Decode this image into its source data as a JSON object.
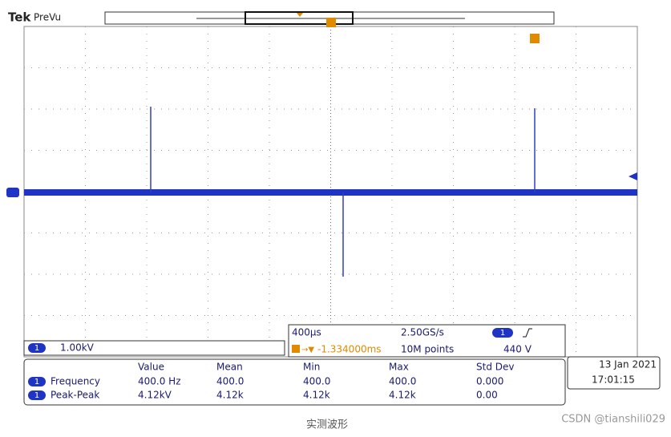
{
  "header": {
    "brand": "Tek",
    "mode": "PreVu"
  },
  "channel": {
    "number": "1",
    "scale": "1.00kV"
  },
  "acquisition": {
    "timebase": "400µs",
    "sample_rate": "2.50GS/s",
    "trigger_position": "-1.334000ms",
    "record_length": "10M points",
    "trigger_channel": "1",
    "trigger_level": "440 V"
  },
  "measurements": {
    "columns": [
      "Value",
      "Mean",
      "Min",
      "Max",
      "Std Dev"
    ],
    "rows": [
      {
        "channel": "1",
        "name": "Frequency",
        "cells": [
          "400.0 Hz",
          "400.0",
          "400.0",
          "400.0",
          "0.000"
        ]
      },
      {
        "channel": "1",
        "name": "Peak-Peak",
        "cells": [
          "4.12kV",
          "4.12k",
          "4.12k",
          "4.12k",
          "0.00"
        ]
      }
    ]
  },
  "datetime": {
    "date": "13 Jan 2021",
    "time": "17:01:15"
  },
  "caption": "实测波形",
  "watermark": "CSDN @tianshili029"
}
